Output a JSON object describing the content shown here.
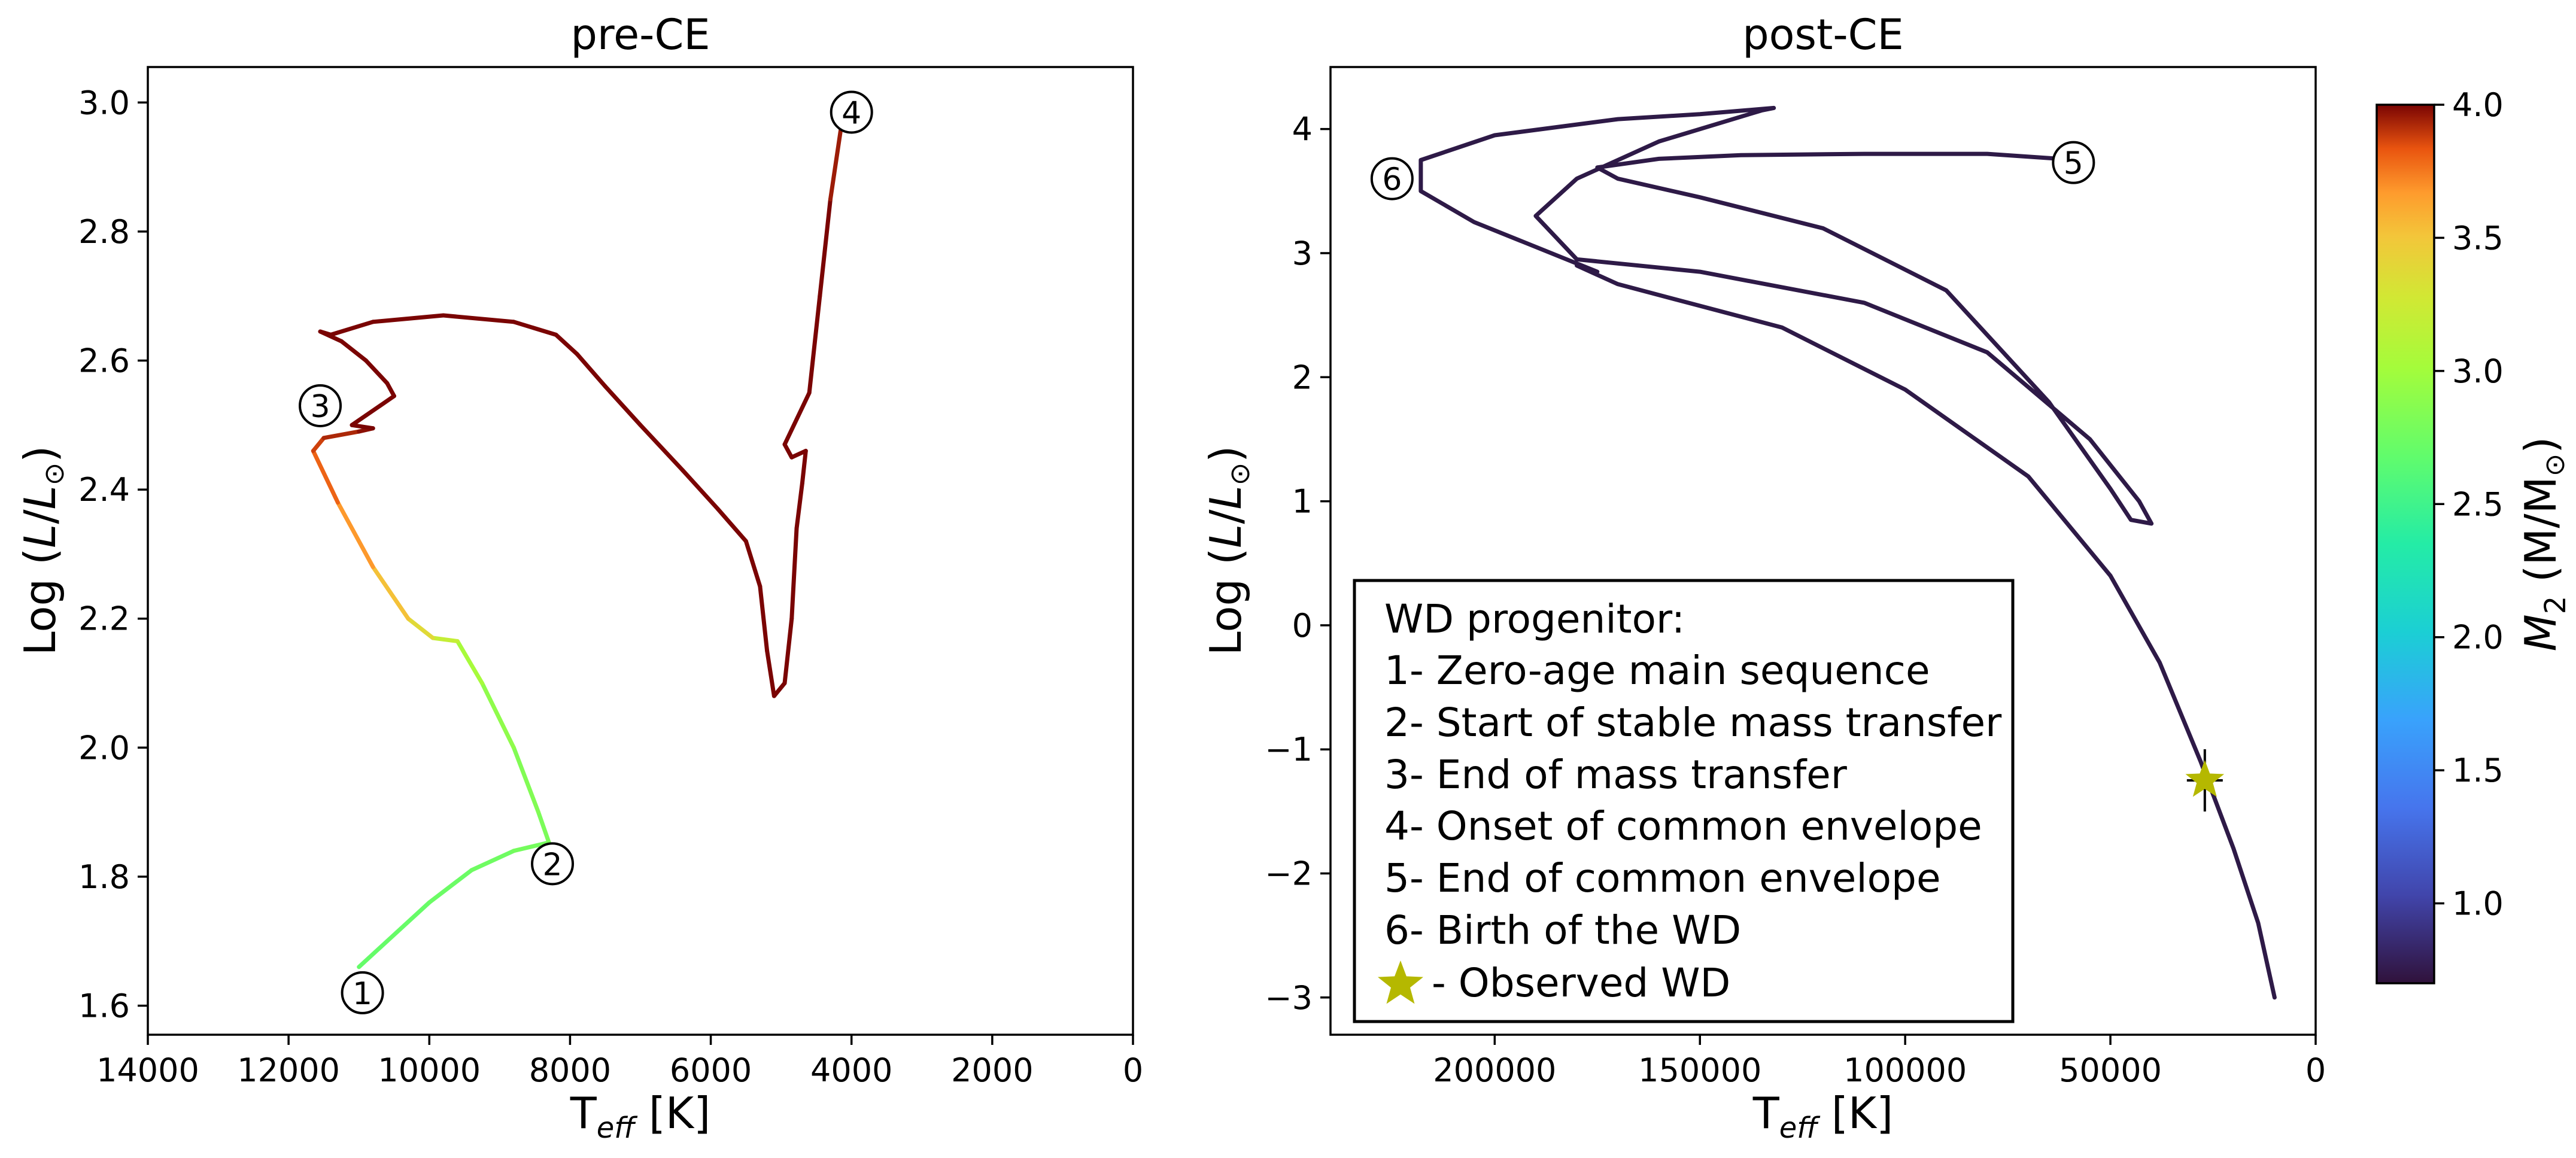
{
  "chart_data": [
    {
      "type": "line",
      "title": "pre-CE",
      "xlabel_main": "T",
      "xlabel_sub": "eff",
      "xlabel_unit": " [K]",
      "ylabel_main": "Log (",
      "ylabel_var": "L",
      "ylabel_slash": "/",
      "ylabel_var2": "L",
      "ylabel_sun": "⊙",
      "ylabel_end": ")",
      "xlim": [
        14000,
        0
      ],
      "ylim": [
        1.555,
        3.055
      ],
      "xticks": [
        14000,
        12000,
        10000,
        8000,
        6000,
        4000,
        2000,
        0
      ],
      "xtick_labels": [
        "14000",
        "12000",
        "10000",
        "8000",
        "6000",
        "4000",
        "2000",
        "0"
      ],
      "yticks": [
        1.6,
        1.8,
        2.0,
        2.2,
        2.4,
        2.6,
        2.8,
        3.0
      ],
      "ytick_labels": [
        "1.6",
        "1.8",
        "2.0",
        "2.2",
        "2.4",
        "2.6",
        "2.8",
        "3.0"
      ],
      "track": [
        {
          "x": 11000,
          "y": 1.66,
          "m": 2.7
        },
        {
          "x": 10600,
          "y": 1.7,
          "m": 2.7
        },
        {
          "x": 10000,
          "y": 1.76,
          "m": 2.72
        },
        {
          "x": 9400,
          "y": 1.81,
          "m": 2.74
        },
        {
          "x": 8800,
          "y": 1.84,
          "m": 2.76
        },
        {
          "x": 8300,
          "y": 1.853,
          "m": 2.8
        },
        {
          "x": 8450,
          "y": 1.9,
          "m": 2.82
        },
        {
          "x": 8800,
          "y": 2.0,
          "m": 2.86
        },
        {
          "x": 9250,
          "y": 2.1,
          "m": 2.95
        },
        {
          "x": 9600,
          "y": 2.165,
          "m": 3.1
        },
        {
          "x": 9950,
          "y": 2.17,
          "m": 3.3
        },
        {
          "x": 10300,
          "y": 2.2,
          "m": 3.45
        },
        {
          "x": 10800,
          "y": 2.28,
          "m": 3.6
        },
        {
          "x": 11300,
          "y": 2.38,
          "m": 3.75
        },
        {
          "x": 11650,
          "y": 2.46,
          "m": 3.85
        },
        {
          "x": 11500,
          "y": 2.48,
          "m": 3.9
        },
        {
          "x": 11000,
          "y": 2.49,
          "m": 3.95
        },
        {
          "x": 10800,
          "y": 2.495,
          "m": 4.0
        },
        {
          "x": 11100,
          "y": 2.5,
          "m": 4.0
        },
        {
          "x": 10900,
          "y": 2.515,
          "m": 4.0
        },
        {
          "x": 10500,
          "y": 2.545,
          "m": 4.0
        },
        {
          "x": 10600,
          "y": 2.565,
          "m": 4.0
        },
        {
          "x": 10900,
          "y": 2.6,
          "m": 4.0
        },
        {
          "x": 11250,
          "y": 2.63,
          "m": 4.0
        },
        {
          "x": 11550,
          "y": 2.645,
          "m": 4.0
        },
        {
          "x": 11400,
          "y": 2.64,
          "m": 4.0
        },
        {
          "x": 10800,
          "y": 2.66,
          "m": 4.0
        },
        {
          "x": 9800,
          "y": 2.67,
          "m": 4.0
        },
        {
          "x": 8800,
          "y": 2.66,
          "m": 4.0
        },
        {
          "x": 8200,
          "y": 2.64,
          "m": 4.0
        },
        {
          "x": 7900,
          "y": 2.61,
          "m": 4.0
        },
        {
          "x": 7500,
          "y": 2.56,
          "m": 4.0
        },
        {
          "x": 7000,
          "y": 2.5,
          "m": 4.0
        },
        {
          "x": 6400,
          "y": 2.43,
          "m": 4.0
        },
        {
          "x": 5900,
          "y": 2.37,
          "m": 4.0
        },
        {
          "x": 5500,
          "y": 2.32,
          "m": 4.0
        },
        {
          "x": 5300,
          "y": 2.25,
          "m": 4.0
        },
        {
          "x": 5200,
          "y": 2.15,
          "m": 4.0
        },
        {
          "x": 5100,
          "y": 2.08,
          "m": 4.0
        },
        {
          "x": 4950,
          "y": 2.1,
          "m": 4.0
        },
        {
          "x": 4850,
          "y": 2.2,
          "m": 4.0
        },
        {
          "x": 4780,
          "y": 2.34,
          "m": 4.0
        },
        {
          "x": 4700,
          "y": 2.41,
          "m": 4.0
        },
        {
          "x": 4650,
          "y": 2.46,
          "m": 4.0
        },
        {
          "x": 4850,
          "y": 2.45,
          "m": 4.0
        },
        {
          "x": 4950,
          "y": 2.47,
          "m": 4.0
        },
        {
          "x": 4600,
          "y": 2.55,
          "m": 4.0
        },
        {
          "x": 4450,
          "y": 2.7,
          "m": 4.0
        },
        {
          "x": 4300,
          "y": 2.85,
          "m": 4.0
        },
        {
          "x": 4150,
          "y": 2.96,
          "m": 3.9
        }
      ],
      "markers": [
        {
          "label": "1",
          "x": 10950,
          "y": 1.62
        },
        {
          "label": "2",
          "x": 8250,
          "y": 1.82
        },
        {
          "label": "3",
          "x": 11550,
          "y": 2.53
        },
        {
          "label": "4",
          "x": 4000,
          "y": 2.985
        }
      ]
    },
    {
      "type": "line",
      "title": "post-CE",
      "xlabel_main": "T",
      "xlabel_sub": "eff",
      "xlabel_unit": " [K]",
      "ylabel_main": "Log (",
      "ylabel_var": "L",
      "ylabel_slash": "/",
      "ylabel_var2": "L",
      "ylabel_sun": "⊙",
      "ylabel_end": ")",
      "xlim": [
        240000,
        0
      ],
      "ylim": [
        -3.3,
        4.5
      ],
      "xticks": [
        200000,
        150000,
        100000,
        50000,
        0
      ],
      "xtick_labels": [
        "200000",
        "150000",
        "100000",
        "50000",
        "0"
      ],
      "yticks": [
        -3,
        -2,
        -1,
        0,
        1,
        2,
        3,
        4
      ],
      "ytick_labels": [
        "−3",
        "−2",
        "−1",
        "0",
        "1",
        "2",
        "3",
        "4"
      ],
      "track_color": "#2e1a47",
      "track": [
        {
          "x": 58000,
          "y": 3.75
        },
        {
          "x": 80000,
          "y": 3.8
        },
        {
          "x": 110000,
          "y": 3.8
        },
        {
          "x": 140000,
          "y": 3.79
        },
        {
          "x": 160000,
          "y": 3.76
        },
        {
          "x": 175000,
          "y": 3.69
        },
        {
          "x": 170000,
          "y": 3.6
        },
        {
          "x": 150000,
          "y": 3.45
        },
        {
          "x": 120000,
          "y": 3.2
        },
        {
          "x": 90000,
          "y": 2.7
        },
        {
          "x": 65000,
          "y": 1.8
        },
        {
          "x": 50000,
          "y": 1.1
        },
        {
          "x": 45000,
          "y": 0.85
        },
        {
          "x": 40000,
          "y": 0.82
        },
        {
          "x": 43000,
          "y": 1.0
        },
        {
          "x": 55000,
          "y": 1.5
        },
        {
          "x": 80000,
          "y": 2.2
        },
        {
          "x": 110000,
          "y": 2.6
        },
        {
          "x": 150000,
          "y": 2.85
        },
        {
          "x": 180000,
          "y": 2.95
        },
        {
          "x": 190000,
          "y": 3.3
        },
        {
          "x": 180000,
          "y": 3.6
        },
        {
          "x": 160000,
          "y": 3.9
        },
        {
          "x": 135000,
          "y": 4.15
        },
        {
          "x": 132000,
          "y": 4.17
        },
        {
          "x": 150000,
          "y": 4.12
        },
        {
          "x": 170000,
          "y": 4.08
        },
        {
          "x": 200000,
          "y": 3.95
        },
        {
          "x": 218000,
          "y": 3.75
        },
        {
          "x": 218000,
          "y": 3.5
        },
        {
          "x": 205000,
          "y": 3.25
        },
        {
          "x": 175000,
          "y": 2.85
        },
        {
          "x": 180000,
          "y": 2.9
        },
        {
          "x": 170000,
          "y": 2.75
        },
        {
          "x": 130000,
          "y": 2.4
        },
        {
          "x": 100000,
          "y": 1.9
        },
        {
          "x": 70000,
          "y": 1.2
        },
        {
          "x": 50000,
          "y": 0.4
        },
        {
          "x": 38000,
          "y": -0.3
        },
        {
          "x": 28000,
          "y": -1.1
        },
        {
          "x": 20000,
          "y": -1.8
        },
        {
          "x": 14000,
          "y": -2.4
        },
        {
          "x": 10000,
          "y": -3.0
        }
      ],
      "markers": [
        {
          "label": "5",
          "x": 59000,
          "y": 3.73
        },
        {
          "label": "6",
          "x": 225000,
          "y": 3.6
        }
      ],
      "observed_wd": {
        "x": 27000,
        "y": -1.25,
        "color": "#b5b800"
      },
      "legend": {
        "placement": "lower-left",
        "entries": [
          "WD progenitor:",
          "1- Zero-age main sequence",
          "2- Start of stable mass transfer",
          "3- End of mass transfer",
          "4- Onset of common envelope",
          "5- End of common envelope",
          "6- Birth of the WD",
          "- Observed WD"
        ]
      }
    }
  ],
  "colorbar": {
    "label_var": "M",
    "label_sub": "2",
    "label_unit": " (M/M",
    "label_sun": "⊙",
    "label_end": ")",
    "range": [
      0.7,
      4.0
    ],
    "ticks": [
      1.0,
      1.5,
      2.0,
      2.5,
      3.0,
      3.5,
      4.0
    ],
    "tick_labels": [
      "1.0",
      "1.5",
      "2.0",
      "2.5",
      "3.0",
      "3.5",
      "4.0"
    ],
    "colormap": "turbo"
  }
}
